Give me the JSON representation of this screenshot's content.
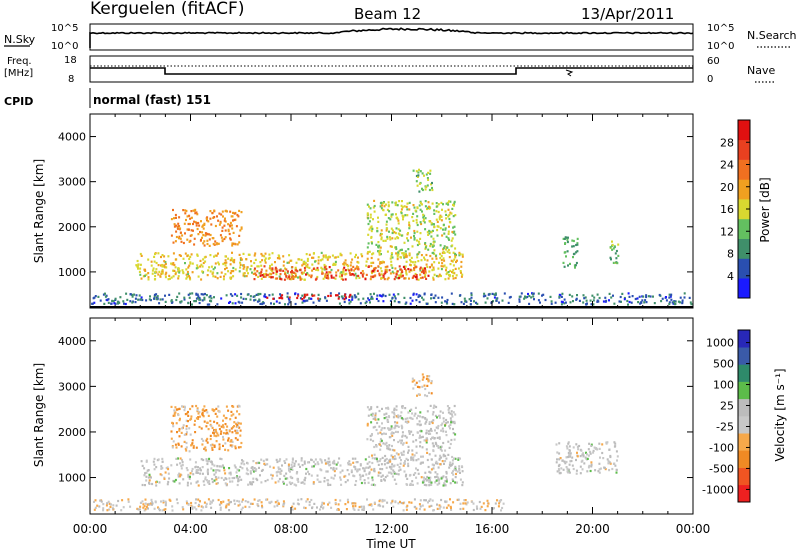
{
  "header": {
    "station": "Kerguelen (fitACF)",
    "beam": "Beam 12",
    "date": "13/Apr/2011"
  },
  "panels": {
    "nsky_label": "N.Sky",
    "nsky_ticks": [
      "10^5",
      "10^0"
    ],
    "nsearch_label": "N.Search",
    "nsearch_ticks": [
      "10^5",
      "10^0"
    ],
    "freq_label": "Freq.",
    "freq_unit": "[MHz]",
    "freq_ticks": [
      "18",
      "8"
    ],
    "nave_label": "Nave",
    "nave_ticks": [
      "60",
      "0"
    ],
    "cpid_label": "CPID",
    "cpid_value": "normal (fast) 151"
  },
  "colors": {
    "power": [
      "#1a1aff",
      "#2a4fb0",
      "#3f8f6a",
      "#63c060",
      "#d8d830",
      "#f0a020",
      "#f07020",
      "#e84020",
      "#e01010"
    ],
    "velocity": [
      "#ee2020",
      "#f05522",
      "#f08a24",
      "#f6a84a",
      "#c8c8c8",
      "#bcbcbc",
      "#5cbc4a",
      "#2e8a6a",
      "#3a5aa8",
      "#2828b8"
    ]
  },
  "chart_data": [
    {
      "type": "heatmap",
      "title": "Power",
      "xlabel": "",
      "ylabel": "Slant Range [km]",
      "xlim": [
        "00:00",
        "24:00"
      ],
      "ylim": [
        200,
        4500
      ],
      "x_ticks": [
        "00:00",
        "04:00",
        "08:00",
        "12:00",
        "16:00",
        "20:00",
        "00:00"
      ],
      "y_ticks": [
        "1000",
        "2000",
        "3000",
        "4000"
      ],
      "colorbar": {
        "label": "Power [dB]",
        "ticks": [
          "4",
          "8",
          "12",
          "16",
          "20",
          "24",
          "28"
        ],
        "range": [
          0,
          30
        ]
      },
      "regions": [
        {
          "t_start": 0.0,
          "t_end": 24.0,
          "r_min": 300,
          "r_max": 550,
          "value": 6
        },
        {
          "t_start": 1.8,
          "t_end": 14.8,
          "r_min": 850,
          "r_max": 1450,
          "value": 16
        },
        {
          "t_start": 6.5,
          "t_end": 13.5,
          "r_min": 850,
          "r_max": 1150,
          "value": 25
        },
        {
          "t_start": 7.0,
          "t_end": 10.5,
          "r_min": 420,
          "r_max": 520,
          "value": 28
        },
        {
          "t_start": 3.2,
          "t_end": 6.0,
          "r_min": 1600,
          "r_max": 2400,
          "value": 20
        },
        {
          "t_start": 11.0,
          "t_end": 14.5,
          "r_min": 1400,
          "r_max": 2600,
          "value": 14
        },
        {
          "t_start": 12.8,
          "t_end": 13.6,
          "r_min": 2800,
          "r_max": 3300,
          "value": 12
        },
        {
          "t_start": 18.8,
          "t_end": 19.4,
          "r_min": 1100,
          "r_max": 1800,
          "value": 10
        },
        {
          "t_start": 20.6,
          "t_end": 21.0,
          "r_min": 1200,
          "r_max": 1700,
          "value": 12
        }
      ]
    },
    {
      "type": "heatmap",
      "title": "Velocity",
      "xlabel": "Time UT",
      "ylabel": "Slant Range [km]",
      "xlim": [
        "00:00",
        "24:00"
      ],
      "ylim": [
        200,
        4500
      ],
      "x_ticks": [
        "00:00",
        "04:00",
        "08:00",
        "12:00",
        "16:00",
        "20:00",
        "00:00"
      ],
      "y_ticks": [
        "1000",
        "2000",
        "3000",
        "4000"
      ],
      "colorbar": {
        "label": "Velocity [m s⁻¹]",
        "ticks": [
          "-1000",
          "-500",
          "-100",
          "-25",
          "25",
          "100",
          "500",
          "1000"
        ],
        "range": [
          -1200,
          1200
        ]
      },
      "regions": [
        {
          "t_start": 0.0,
          "t_end": 16.5,
          "r_min": 300,
          "r_max": 550,
          "value": -150
        },
        {
          "t_start": 2.0,
          "t_end": 14.8,
          "r_min": 850,
          "r_max": 1450,
          "value": 0
        },
        {
          "t_start": 3.2,
          "t_end": 6.0,
          "r_min": 1600,
          "r_max": 2600,
          "value": -400
        },
        {
          "t_start": 11.0,
          "t_end": 14.5,
          "r_min": 1400,
          "r_max": 2600,
          "value": 0
        },
        {
          "t_start": 12.8,
          "t_end": 13.6,
          "r_min": 2800,
          "r_max": 3300,
          "value": -300
        },
        {
          "t_start": 13.2,
          "t_end": 14.2,
          "r_min": 850,
          "r_max": 1050,
          "value": 150
        },
        {
          "t_start": 18.5,
          "t_end": 21.0,
          "r_min": 1100,
          "r_max": 1800,
          "value": 0
        }
      ]
    }
  ]
}
